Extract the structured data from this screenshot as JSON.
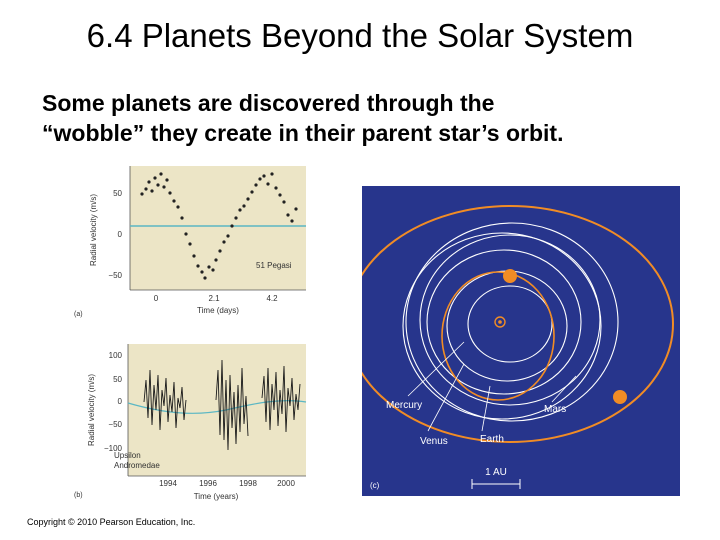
{
  "slide": {
    "title": "6.4 Planets Beyond the Solar System",
    "body_line1": "Some planets are discovered through the",
    "body_line2": "“wobble” they create in their parent star’s orbit.",
    "copyright": "Copyright © 2010 Pearson Education, Inc."
  },
  "panels": {
    "a": {
      "label": "(a)",
      "ylabel": "Radial velocity (m/s)",
      "xlabel": "Time (days)",
      "yticks": [
        "50",
        "0",
        "−50"
      ],
      "xticks": [
        "0",
        "2.1",
        "4.2"
      ],
      "star": "51 Pegasi",
      "bg": "#ece5c6",
      "curve_color": "#5bb7c4"
    },
    "b": {
      "label": "(b)",
      "ylabel": "Radial velocity (m/s)",
      "xlabel": "Time (years)",
      "yticks": [
        "100",
        "50",
        "0",
        "−50",
        "−100"
      ],
      "xticks": [
        "1994",
        "1996",
        "1998",
        "2000"
      ],
      "star_line1": "Upsilon",
      "star_line2": "Andromedae",
      "bg": "#ece5c6",
      "curve_color": "#5bb7c4"
    },
    "c": {
      "label": "(c)",
      "bg": "#27358c",
      "orbit_color": "#f18c25",
      "planet_names": [
        "Mercury",
        "Venus",
        "Earth",
        "Mars"
      ],
      "scale_label": "1 AU"
    }
  }
}
